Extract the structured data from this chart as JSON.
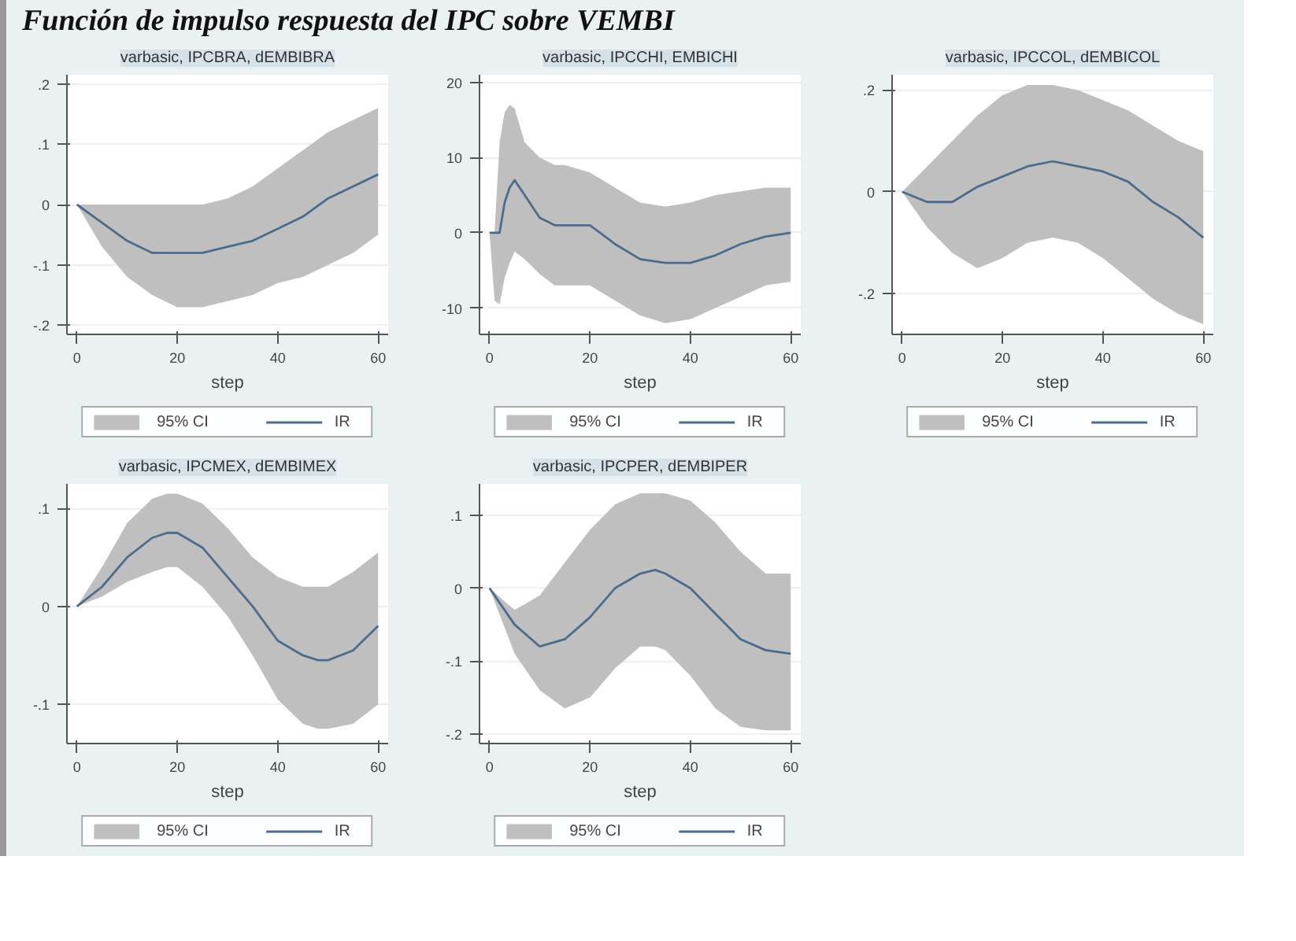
{
  "chart_data": [
    {
      "type": "line",
      "subtitle": "Función de impulso respuesta del IPC sobre VEMBI",
      "title": "varbasic, IPCBRA, dEMBIBRA",
      "xlabel": "step",
      "xlim": [
        -2,
        62
      ],
      "xticks": [
        0,
        20,
        40,
        60
      ],
      "ylim": [
        -0.215,
        0.215
      ],
      "yticks": [
        {
          "value": -0.2,
          "label": "-.2"
        },
        {
          "value": -0.1,
          "label": "-.1"
        },
        0,
        {
          "value": 0.1,
          "label": ".1"
        },
        {
          "value": 0.2,
          "label": ".2"
        }
      ],
      "grid": "y",
      "legend": "bottom",
      "x": [
        0,
        5,
        10,
        15,
        20,
        25,
        30,
        35,
        40,
        45,
        50,
        55,
        60
      ],
      "series": [
        {
          "type": "area",
          "name": "95% CI",
          "color": "#bfbfbf",
          "values": [
            null,
            null,
            null,
            null,
            null,
            null,
            null,
            null,
            null,
            null,
            null,
            null,
            null
          ],
          "lower": [
            0,
            -0.07,
            -0.12,
            -0.15,
            -0.17,
            -0.17,
            -0.16,
            -0.15,
            -0.13,
            -0.12,
            -0.1,
            -0.08,
            -0.05
          ],
          "upper": [
            0,
            0.0,
            0.0,
            0.0,
            0.0,
            0.0,
            0.01,
            0.03,
            0.06,
            0.09,
            0.12,
            0.14,
            0.16
          ]
        },
        {
          "name": "IR",
          "color": "#4b6c8c",
          "values": [
            0,
            -0.03,
            -0.06,
            -0.08,
            -0.08,
            -0.08,
            -0.07,
            -0.06,
            -0.04,
            -0.02,
            0.01,
            0.03,
            0.05
          ]
        }
      ]
    },
    {
      "type": "line",
      "title": "varbasic, IPCCHI, EMBICHI",
      "xlabel": "step",
      "xlim": [
        -2,
        62
      ],
      "xticks": [
        0,
        20,
        40,
        60
      ],
      "ylim": [
        -13.5,
        21
      ],
      "yticks": [
        -10,
        0,
        10,
        20
      ],
      "grid": "y",
      "legend": "bottom",
      "x": [
        0,
        1,
        2,
        3,
        4,
        5,
        7,
        10,
        13,
        15,
        20,
        25,
        30,
        35,
        40,
        45,
        50,
        55,
        60
      ],
      "series": [
        {
          "type": "area",
          "name": "95% CI",
          "color": "#bfbfbf",
          "values": [
            null,
            null,
            null,
            null,
            null,
            null,
            null,
            null,
            null,
            null,
            null,
            null,
            null,
            null,
            null,
            null,
            null,
            null,
            null
          ],
          "lower": [
            0,
            -9,
            -9.5,
            -6,
            -4,
            -2.5,
            -3.5,
            -5.5,
            -7,
            -7,
            -7,
            -9,
            -11,
            -12,
            -11.5,
            -10,
            -8.5,
            -7,
            -6.5
          ],
          "upper": [
            0,
            0,
            12,
            16,
            17,
            16.5,
            12,
            10,
            9,
            9,
            8,
            6,
            4,
            3.5,
            4,
            5,
            5.5,
            6,
            6
          ]
        },
        {
          "name": "IR",
          "color": "#4b6c8c",
          "values": [
            0,
            0,
            0,
            4,
            6,
            7,
            5,
            2,
            1,
            1,
            1,
            -1.5,
            -3.5,
            -4,
            -4,
            -3,
            -1.5,
            -0.5,
            0
          ]
        }
      ]
    },
    {
      "type": "line",
      "title": "varbasic, IPCCOL, dEMBICOL",
      "xlabel": "step",
      "xlim": [
        -2,
        62
      ],
      "xticks": [
        0,
        20,
        40,
        60
      ],
      "ylim": [
        -0.28,
        0.23
      ],
      "yticks": [
        {
          "value": -0.2,
          "label": "-.2"
        },
        0,
        {
          "value": 0.2,
          "label": ".2"
        }
      ],
      "grid": "y",
      "legend": "bottom",
      "x": [
        0,
        5,
        10,
        15,
        20,
        25,
        30,
        35,
        40,
        45,
        50,
        55,
        60
      ],
      "series": [
        {
          "type": "area",
          "name": "95% CI",
          "color": "#bfbfbf",
          "values": [
            null,
            null,
            null,
            null,
            null,
            null,
            null,
            null,
            null,
            null,
            null,
            null,
            null
          ],
          "lower": [
            0,
            -0.07,
            -0.12,
            -0.15,
            -0.13,
            -0.1,
            -0.09,
            -0.1,
            -0.13,
            -0.17,
            -0.21,
            -0.24,
            -0.26
          ],
          "upper": [
            0,
            0.05,
            0.1,
            0.15,
            0.19,
            0.21,
            0.21,
            0.2,
            0.18,
            0.16,
            0.13,
            0.1,
            0.08
          ]
        },
        {
          "name": "IR",
          "color": "#4b6c8c",
          "values": [
            0,
            -0.02,
            -0.02,
            0.01,
            0.03,
            0.05,
            0.06,
            0.05,
            0.04,
            0.02,
            -0.02,
            -0.05,
            -0.09
          ]
        }
      ]
    },
    {
      "type": "line",
      "title": "varbasic, IPCMEX, dEMBIMEX",
      "xlabel": "step",
      "xlim": [
        -2,
        62
      ],
      "xticks": [
        0,
        20,
        40,
        60
      ],
      "ylim": [
        -0.14,
        0.125
      ],
      "yticks": [
        {
          "value": -0.1,
          "label": "-.1"
        },
        0,
        {
          "value": 0.1,
          "label": ".1"
        }
      ],
      "grid": "y",
      "legend": "bottom",
      "x": [
        0,
        5,
        10,
        15,
        18,
        20,
        25,
        30,
        35,
        40,
        45,
        48,
        50,
        55,
        60
      ],
      "series": [
        {
          "type": "area",
          "name": "95% CI",
          "color": "#bfbfbf",
          "values": [
            null,
            null,
            null,
            null,
            null,
            null,
            null,
            null,
            null,
            null,
            null,
            null,
            null,
            null,
            null
          ],
          "lower": [
            0,
            0.01,
            0.025,
            0.035,
            0.04,
            0.04,
            0.02,
            -0.01,
            -0.05,
            -0.095,
            -0.12,
            -0.125,
            -0.125,
            -0.12,
            -0.1
          ],
          "upper": [
            0,
            0.04,
            0.085,
            0.11,
            0.115,
            0.115,
            0.105,
            0.08,
            0.05,
            0.03,
            0.02,
            0.02,
            0.02,
            0.035,
            0.055
          ]
        },
        {
          "name": "IR",
          "color": "#4b6c8c",
          "values": [
            0,
            0.02,
            0.05,
            0.07,
            0.075,
            0.075,
            0.06,
            0.03,
            0.0,
            -0.035,
            -0.05,
            -0.055,
            -0.055,
            -0.045,
            -0.02
          ]
        }
      ]
    },
    {
      "type": "line",
      "title": "varbasic, IPCPER, dEMBIPER",
      "xlabel": "step",
      "xlim": [
        -2,
        62
      ],
      "xticks": [
        0,
        20,
        40,
        60
      ],
      "ylim": [
        -0.213,
        0.143
      ],
      "yticks": [
        {
          "value": -0.2,
          "label": "-.2"
        },
        {
          "value": -0.1,
          "label": "-.1"
        },
        0,
        {
          "value": 0.1,
          "label": ".1"
        }
      ],
      "grid": "y",
      "legend": "bottom",
      "x": [
        0,
        5,
        10,
        15,
        20,
        25,
        30,
        33,
        35,
        40,
        45,
        50,
        55,
        60
      ],
      "series": [
        {
          "type": "area",
          "name": "95% CI",
          "color": "#bfbfbf",
          "values": [
            null,
            null,
            null,
            null,
            null,
            null,
            null,
            null,
            null,
            null,
            null,
            null,
            null,
            null
          ],
          "lower": [
            0,
            -0.09,
            -0.14,
            -0.165,
            -0.15,
            -0.11,
            -0.08,
            -0.08,
            -0.085,
            -0.12,
            -0.165,
            -0.19,
            -0.195,
            -0.195
          ],
          "upper": [
            0,
            -0.03,
            -0.01,
            0.035,
            0.08,
            0.115,
            0.13,
            0.13,
            0.13,
            0.12,
            0.09,
            0.05,
            0.02,
            0.02
          ]
        },
        {
          "name": "IR",
          "color": "#4b6c8c",
          "values": [
            0,
            -0.05,
            -0.08,
            -0.07,
            -0.04,
            0.0,
            0.02,
            0.025,
            0.02,
            0.0,
            -0.035,
            -0.07,
            -0.085,
            -0.09
          ]
        }
      ]
    }
  ]
}
